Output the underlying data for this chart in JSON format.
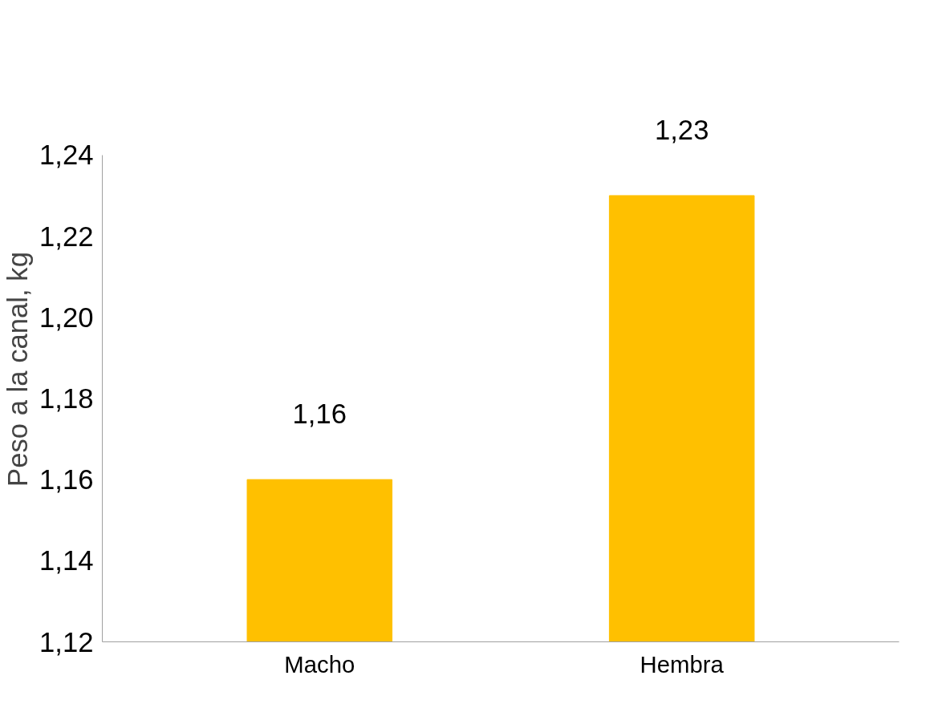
{
  "chart_data": {
    "type": "bar",
    "ylabel": "Peso a la canal, kg",
    "categories": [
      "Macho",
      "Hembra"
    ],
    "values": [
      1.16,
      1.23
    ],
    "value_labels": [
      "1,16",
      "1,23"
    ],
    "color": "#ffc000",
    "ylim": [
      1.12,
      1.24
    ],
    "yticks": [
      {
        "value": 1.12,
        "label": "1,12"
      },
      {
        "value": 1.14,
        "label": "1,14"
      },
      {
        "value": 1.16,
        "label": "1,16"
      },
      {
        "value": 1.18,
        "label": "1,18"
      },
      {
        "value": 1.2,
        "label": "1,20"
      },
      {
        "value": 1.22,
        "label": "1,22"
      },
      {
        "value": 1.24,
        "label": "1,24"
      }
    ],
    "grid": false
  }
}
